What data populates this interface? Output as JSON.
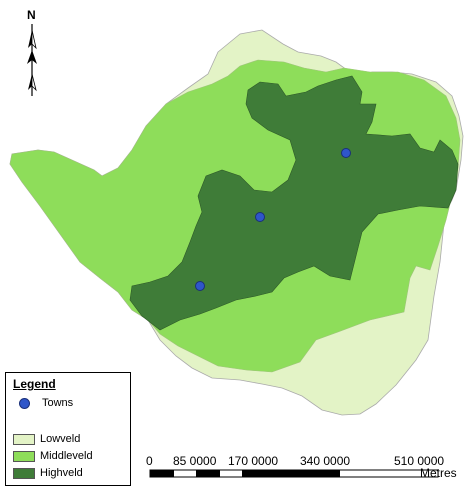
{
  "north_arrow": {
    "label": "N",
    "icon": "north-arrow-icon"
  },
  "regions": [
    {
      "id": "lowveld",
      "name": "Lowveld",
      "color": "#e3f3c6"
    },
    {
      "id": "middleveld",
      "name": "Middleveld",
      "color": "#8edd5a"
    },
    {
      "id": "highveld",
      "name": "Highveld",
      "color": "#3f7c38"
    }
  ],
  "towns_color": "#2f56c9",
  "legend": {
    "title": "Legend",
    "towns_label": "Towns",
    "lowveld_label": "Lowveld",
    "middleveld_label": "Middleveld",
    "highveld_label": "Highveld"
  },
  "scale_bar": {
    "ticks": [
      "0",
      "85 0000",
      "170 0000",
      "340 0000",
      "510 0000"
    ],
    "unit": "Metres"
  }
}
